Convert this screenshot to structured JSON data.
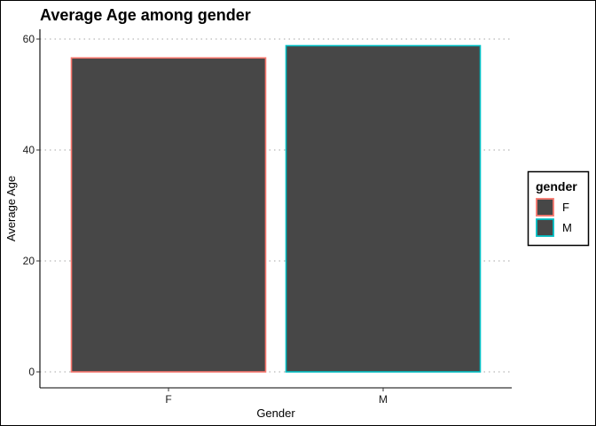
{
  "chart_data": {
    "type": "bar",
    "title": "Average Age among gender",
    "xlabel": "Gender",
    "ylabel": "Average Age",
    "categories": [
      "F",
      "M"
    ],
    "values": [
      56.6,
      58.8
    ],
    "ylim": [
      0,
      61.8
    ],
    "yticks": [
      0,
      20,
      40,
      60
    ],
    "fill_color": "#474747",
    "outline_colors": {
      "F": "#F8766D",
      "M": "#00BFC4"
    },
    "grid": "horizontal-dotted",
    "legend": {
      "title": "gender",
      "position": "right",
      "items": [
        {
          "label": "F",
          "color": "#F8766D"
        },
        {
          "label": "M",
          "color": "#00BFC4"
        }
      ]
    }
  }
}
